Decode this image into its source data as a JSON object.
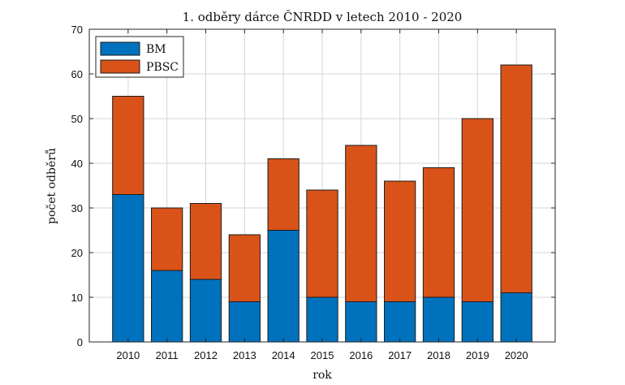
{
  "chart_data": {
    "type": "bar",
    "stacked": true,
    "title": "1. odběry dárce ČNRDD v letech 2010 - 2020",
    "xlabel": "rok",
    "ylabel": "počet odběrů",
    "ylim": [
      0,
      70
    ],
    "yticks": [
      0,
      10,
      20,
      30,
      40,
      50,
      60,
      70
    ],
    "grid": true,
    "legend_position": "top-left",
    "categories": [
      "2010",
      "2011",
      "2012",
      "2013",
      "2014",
      "2015",
      "2016",
      "2017",
      "2018",
      "2019",
      "2020"
    ],
    "series": [
      {
        "name": "BM",
        "color": "#0072BD",
        "values": [
          33,
          16,
          14,
          9,
          25,
          10,
          9,
          9,
          10,
          9,
          11
        ]
      },
      {
        "name": "PBSC",
        "color": "#D95319",
        "values": [
          22,
          14,
          17,
          15,
          16,
          24,
          35,
          27,
          29,
          41,
          51
        ]
      }
    ]
  }
}
